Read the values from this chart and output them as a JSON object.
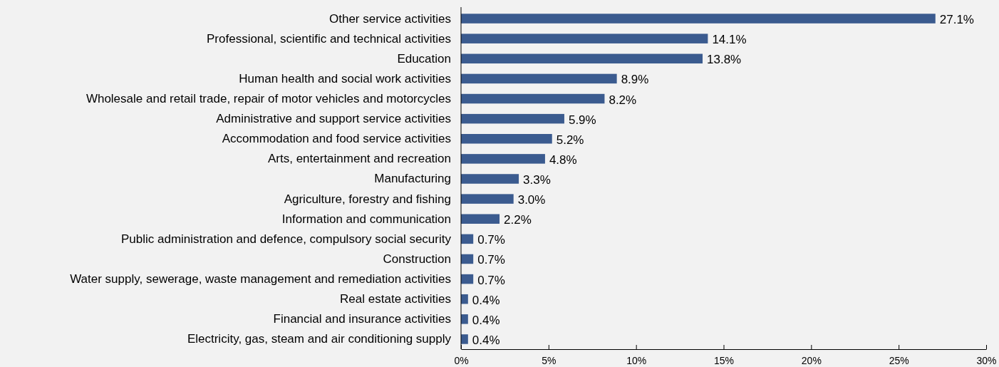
{
  "chart_data": {
    "type": "bar",
    "orientation": "horizontal",
    "categories": [
      "Other service activities",
      "Professional, scientific and technical activities",
      "Education",
      "Human health and social work activities",
      "Wholesale and retail trade, repair of motor vehicles and motorcycles",
      "Administrative and support service activities",
      "Accommodation and food service activities",
      "Arts, entertainment and recreation",
      "Manufacturing",
      "Agriculture, forestry and fishing",
      "Information and communication",
      "Public administration and defence, compulsory social security",
      "Construction",
      "Water supply, sewerage, waste management and remediation activities",
      "Real estate activities",
      "Financial and insurance activities",
      "Electricity, gas, steam and air conditioning supply"
    ],
    "values": [
      27.1,
      14.1,
      13.8,
      8.9,
      8.2,
      5.9,
      5.2,
      4.8,
      3.3,
      3.0,
      2.2,
      0.7,
      0.7,
      0.7,
      0.4,
      0.4,
      0.4
    ],
    "value_labels": [
      "27.1%",
      "14.1%",
      "13.8%",
      "8.9%",
      "8.2%",
      "5.9%",
      "5.2%",
      "4.8%",
      "3.3%",
      "3.0%",
      "2.2%",
      "0.7%",
      "0.7%",
      "0.7%",
      "0.4%",
      "0.4%",
      "0.4%"
    ],
    "color": "#3b5b8f",
    "xlim": [
      0,
      30
    ],
    "xticks": [
      {
        "value": 0,
        "label": "0%"
      },
      {
        "value": 5,
        "label": "5%"
      },
      {
        "value": 10,
        "label": "10%"
      },
      {
        "value": 15,
        "label": "15%"
      },
      {
        "value": 20,
        "label": "20%"
      },
      {
        "value": 25,
        "label": "25%"
      },
      {
        "value": 30,
        "label": "30%"
      }
    ],
    "grid": false
  }
}
